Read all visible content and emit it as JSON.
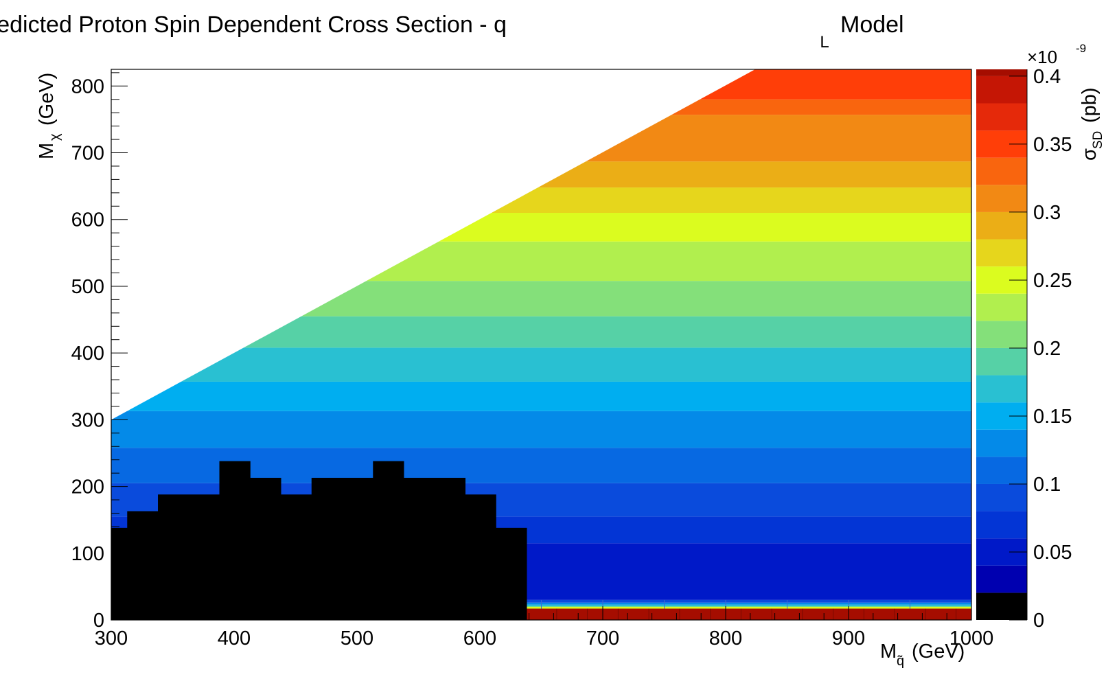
{
  "chart_data": {
    "type": "heatmap",
    "title": "Predicted Proton Spin Dependent Cross Section - q",
    "title_subscript": "L",
    "title_suffix": "Model",
    "xlabel": "M",
    "xlabel_sub": "q̃",
    "xlabel_unit": "(GeV)",
    "ylabel": "M",
    "ylabel_sub": "χ",
    "ylabel_unit": "(GeV)",
    "zlabel": "σ",
    "zlabel_sub": "SD",
    "zlabel_unit": "(pb)",
    "z_exponent_label": "×10",
    "z_exponent": "-9",
    "xlim": [
      300,
      1000
    ],
    "ylim": [
      0,
      825
    ],
    "zlim": [
      0,
      0.405
    ],
    "x_ticks": [
      300,
      400,
      500,
      600,
      700,
      800,
      900,
      1000
    ],
    "x_tick_labels": [
      "300",
      "400",
      "500",
      "600",
      "700",
      "800",
      "900",
      "1000"
    ],
    "y_ticks": [
      0,
      100,
      200,
      300,
      400,
      500,
      600,
      700,
      800
    ],
    "y_tick_labels": [
      "0",
      "100",
      "200",
      "300",
      "400",
      "500",
      "600",
      "700",
      "800"
    ],
    "z_ticks": [
      0,
      0.05,
      0.1,
      0.15,
      0.2,
      0.25,
      0.3,
      0.35,
      0.4
    ],
    "z_tick_labels": [
      "0",
      "0.05",
      "0.1",
      "0.15",
      "0.2",
      "0.25",
      "0.3",
      "0.35",
      "0.4"
    ],
    "palette": [
      "#000000",
      "#0000b0",
      "#0019c8",
      "#0335d5",
      "#0a4bdc",
      "#0769e2",
      "#048ae8",
      "#00aef0",
      "#29c0d2",
      "#56d1a6",
      "#84e07a",
      "#b1ef4e",
      "#dbfc1f",
      "#e6d61c",
      "#ebae16",
      "#f28914",
      "#f9650e",
      "#ff3e08",
      "#e5290a",
      "#c51605",
      "#a50d00"
    ],
    "palette_bounds": [
      0,
      0.02,
      0.04,
      0.06,
      0.08,
      0.1,
      0.12,
      0.14,
      0.16,
      0.18,
      0.2,
      0.22,
      0.24,
      0.26,
      0.28,
      0.3,
      0.32,
      0.34,
      0.36,
      0.38,
      0.4,
      0.405
    ],
    "bands": [
      {
        "ymin": 0,
        "ymax": 17,
        "z": 0.404
      },
      {
        "ymin": 17,
        "ymax": 20,
        "z": 0.24
      },
      {
        "ymin": 20,
        "ymax": 23,
        "z": 0.17
      },
      {
        "ymin": 23,
        "ymax": 26,
        "z": 0.13
      },
      {
        "ymin": 26,
        "ymax": 30,
        "z": 0.09
      },
      {
        "ymin": 30,
        "ymax": 115,
        "z": 0.05
      },
      {
        "ymin": 115,
        "ymax": 155,
        "z": 0.07
      },
      {
        "ymin": 155,
        "ymax": 205,
        "z": 0.09
      },
      {
        "ymin": 205,
        "ymax": 258,
        "z": 0.11
      },
      {
        "ymin": 258,
        "ymax": 313,
        "z": 0.13
      },
      {
        "ymin": 313,
        "ymax": 357,
        "z": 0.15
      },
      {
        "ymin": 357,
        "ymax": 408,
        "z": 0.17
      },
      {
        "ymin": 408,
        "ymax": 455,
        "z": 0.19
      },
      {
        "ymin": 455,
        "ymax": 508,
        "z": 0.21
      },
      {
        "ymin": 508,
        "ymax": 567,
        "z": 0.23
      },
      {
        "ymin": 567,
        "ymax": 610,
        "z": 0.25
      },
      {
        "ymin": 610,
        "ymax": 648,
        "z": 0.27
      },
      {
        "ymin": 648,
        "ymax": 687,
        "z": 0.29
      },
      {
        "ymin": 687,
        "ymax": 757,
        "z": 0.31
      },
      {
        "ymin": 757,
        "ymax": 780,
        "z": 0.33
      },
      {
        "ymin": 780,
        "ymax": 825,
        "z": 0.35
      }
    ],
    "valid_region": {
      "description": "M_chi < M_squark",
      "boundary": [
        [
          300,
          300
        ],
        [
          824,
          825
        ]
      ]
    },
    "excluded_region": {
      "z": 0,
      "bins": [
        {
          "x0": 300,
          "x1": 313,
          "ymax": 138
        },
        {
          "x0": 313,
          "x1": 338,
          "ymax": 163
        },
        {
          "x0": 338,
          "x1": 388,
          "ymax": 188
        },
        {
          "x0": 388,
          "x1": 413,
          "ymax": 238
        },
        {
          "x0": 413,
          "x1": 438,
          "ymax": 213
        },
        {
          "x0": 438,
          "x1": 463,
          "ymax": 188
        },
        {
          "x0": 463,
          "x1": 513,
          "ymax": 213
        },
        {
          "x0": 513,
          "x1": 538,
          "ymax": 238
        },
        {
          "x0": 538,
          "x1": 588,
          "ymax": 213
        },
        {
          "x0": 588,
          "x1": 613,
          "ymax": 188
        },
        {
          "x0": 613,
          "x1": 638,
          "ymax": 138
        }
      ]
    },
    "grid": false,
    "legend": "colorbar-right"
  }
}
